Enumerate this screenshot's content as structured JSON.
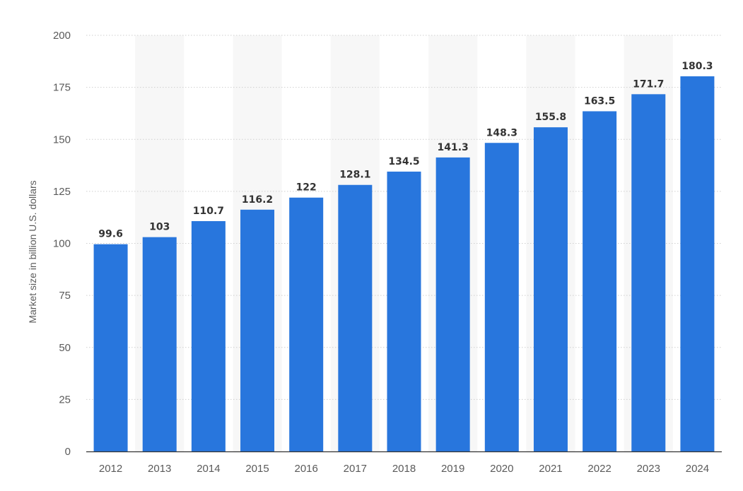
{
  "chart_data": {
    "type": "bar",
    "title": "",
    "xlabel": "",
    "ylabel": "Market size in billion U.S. dollars",
    "categories": [
      "2012",
      "2013",
      "2014",
      "2015",
      "2016",
      "2017",
      "2018",
      "2019",
      "2020",
      "2021",
      "2022",
      "2023",
      "2024"
    ],
    "values": [
      99.6,
      103,
      110.7,
      116.2,
      122,
      128.1,
      134.5,
      141.3,
      148.3,
      155.8,
      163.5,
      171.7,
      180.3
    ],
    "value_labels": [
      "99.6",
      "103",
      "110.7",
      "116.2",
      "122",
      "128.1",
      "134.5",
      "141.3",
      "148.3",
      "155.8",
      "163.5",
      "171.7",
      "180.3"
    ],
    "ylim": [
      0,
      200
    ],
    "yticks": [
      0,
      25,
      50,
      75,
      100,
      125,
      150,
      175,
      200
    ],
    "grid": true,
    "legend": "none",
    "colors": {
      "bar": "#2876dd",
      "alt_band": "#f7f7f7",
      "grid": "#cfcfcf",
      "axis": "#333333"
    }
  }
}
